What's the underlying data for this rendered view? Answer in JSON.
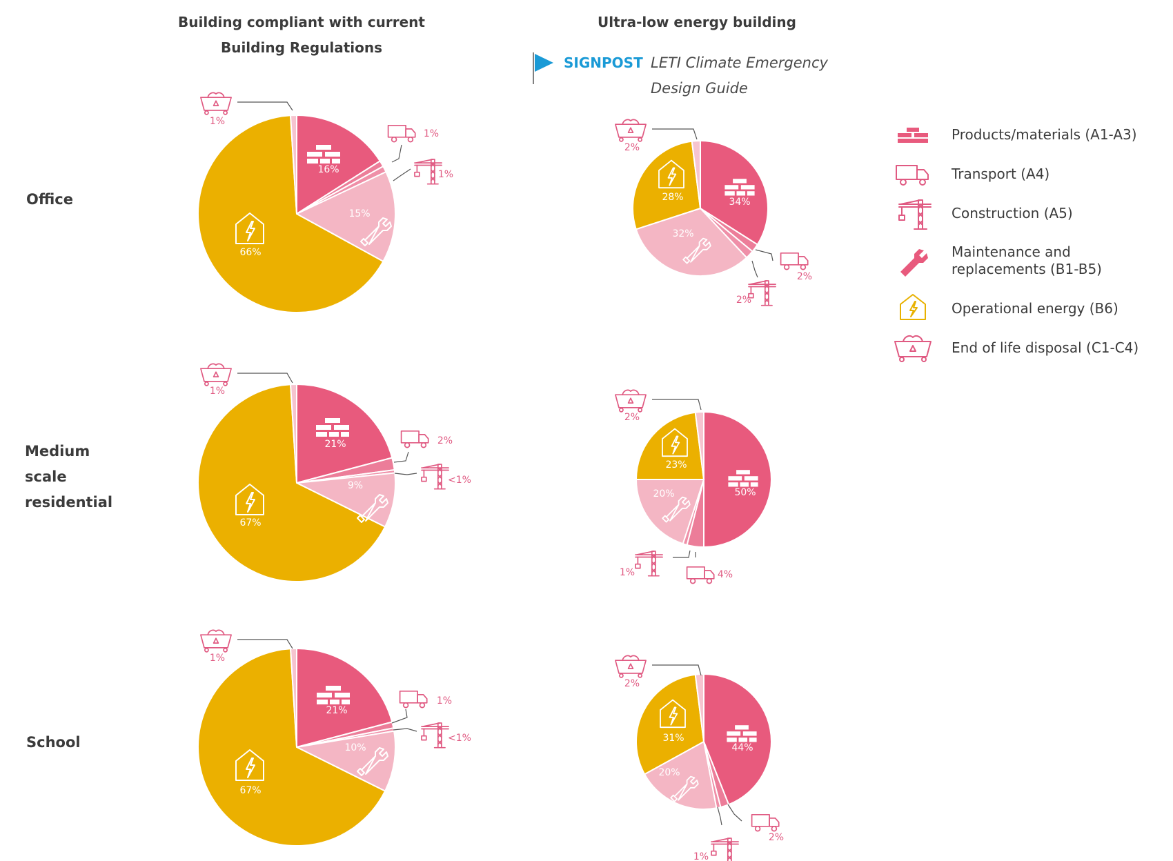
{
  "headers": {
    "col1_line1": "Building compliant with current",
    "col1_line2": "Building Regulations",
    "col2": "Ultra-low energy building",
    "signpost_label": "SIGNPOST",
    "signpost_line1": "LETI Climate Emergency",
    "signpost_line2": "Design Guide"
  },
  "rows": {
    "office": "Office",
    "residential_line1": "Medium",
    "residential_line2": "scale",
    "residential_line3": "residential",
    "school": "School"
  },
  "legend": [
    {
      "icon": "bricks-icon",
      "label": "Products/materials (A1-A3)",
      "color": "#e85a7d"
    },
    {
      "icon": "truck-icon",
      "label": "Transport (A4)",
      "color": "#e85a7d"
    },
    {
      "icon": "crane-icon",
      "label": "Construction (A5)",
      "color": "#e85a7d"
    },
    {
      "icon": "wrench-icon",
      "label_line1": "Maintenance and",
      "label_line2": "replacements (B1-B5)",
      "color": "#e85a7d"
    },
    {
      "icon": "house-bolt-icon",
      "label": "Operational energy (B6)",
      "color": "#e8b100"
    },
    {
      "icon": "skip-icon",
      "label": "End of life disposal (C1-C4)",
      "color": "#e85a7d"
    }
  ],
  "colors": {
    "products": "#e85a7d",
    "transport": "#ec7d99",
    "construction": "#ef8fa8",
    "maintenance": "#f4b6c4",
    "operational": "#ebb000",
    "eol": "#f6c4cf"
  },
  "chart_data": [
    {
      "type": "pie",
      "name": "Office - compliant",
      "labels": [
        "Products/materials (A1-A3)",
        "Transport (A4)",
        "Construction (A5)",
        "Maintenance and replacements (B1-B5)",
        "Operational energy (B6)",
        "End of life disposal (C1-C4)"
      ],
      "values": [
        16,
        1,
        1,
        15,
        66,
        1
      ],
      "display": [
        "16%",
        "1%",
        "1%",
        "15%",
        "66%",
        "1%"
      ]
    },
    {
      "type": "pie",
      "name": "Office - ultra-low energy",
      "labels": [
        "Products/materials (A1-A3)",
        "Transport (A4)",
        "Construction (A5)",
        "Maintenance and replacements (B1-B5)",
        "Operational energy (B6)",
        "End of life disposal (C1-C4)"
      ],
      "values": [
        34,
        2,
        2,
        32,
        28,
        2
      ],
      "display": [
        "34%",
        "2%",
        "2%",
        "32%",
        "28%",
        "2%"
      ]
    },
    {
      "type": "pie",
      "name": "Medium scale residential - compliant",
      "labels": [
        "Products/materials (A1-A3)",
        "Transport (A4)",
        "Construction (A5)",
        "Maintenance and replacements (B1-B5)",
        "Operational energy (B6)",
        "End of life disposal (C1-C4)"
      ],
      "values": [
        21,
        2,
        0.5,
        9,
        67,
        1
      ],
      "display": [
        "21%",
        "2%",
        "<1%",
        "9%",
        "67%",
        "1%"
      ]
    },
    {
      "type": "pie",
      "name": "Medium scale residential - ultra-low energy",
      "labels": [
        "Products/materials (A1-A3)",
        "Transport (A4)",
        "Construction (A5)",
        "Maintenance and replacements (B1-B5)",
        "Operational energy (B6)",
        "End of life disposal (C1-C4)"
      ],
      "values": [
        50,
        4,
        1,
        20,
        23,
        2
      ],
      "display": [
        "50%",
        "4%",
        "1%",
        "20%",
        "23%",
        "2%"
      ]
    },
    {
      "type": "pie",
      "name": "School - compliant",
      "labels": [
        "Products/materials (A1-A3)",
        "Transport (A4)",
        "Construction (A5)",
        "Maintenance and replacements (B1-B5)",
        "Operational energy (B6)",
        "End of life disposal (C1-C4)"
      ],
      "values": [
        21,
        1,
        0.5,
        10,
        67,
        1
      ],
      "display": [
        "21%",
        "1%",
        "<1%",
        "10%",
        "67%",
        "1%"
      ]
    },
    {
      "type": "pie",
      "name": "School - ultra-low energy",
      "labels": [
        "Products/materials (A1-A3)",
        "Transport (A4)",
        "Construction (A5)",
        "Maintenance and replacements (B1-B5)",
        "Operational energy (B6)",
        "End of life disposal (C1-C4)"
      ],
      "values": [
        44,
        2,
        1,
        20,
        31,
        2
      ],
      "display": [
        "44%",
        "2%",
        "1%",
        "20%",
        "31%",
        "2%"
      ]
    }
  ]
}
